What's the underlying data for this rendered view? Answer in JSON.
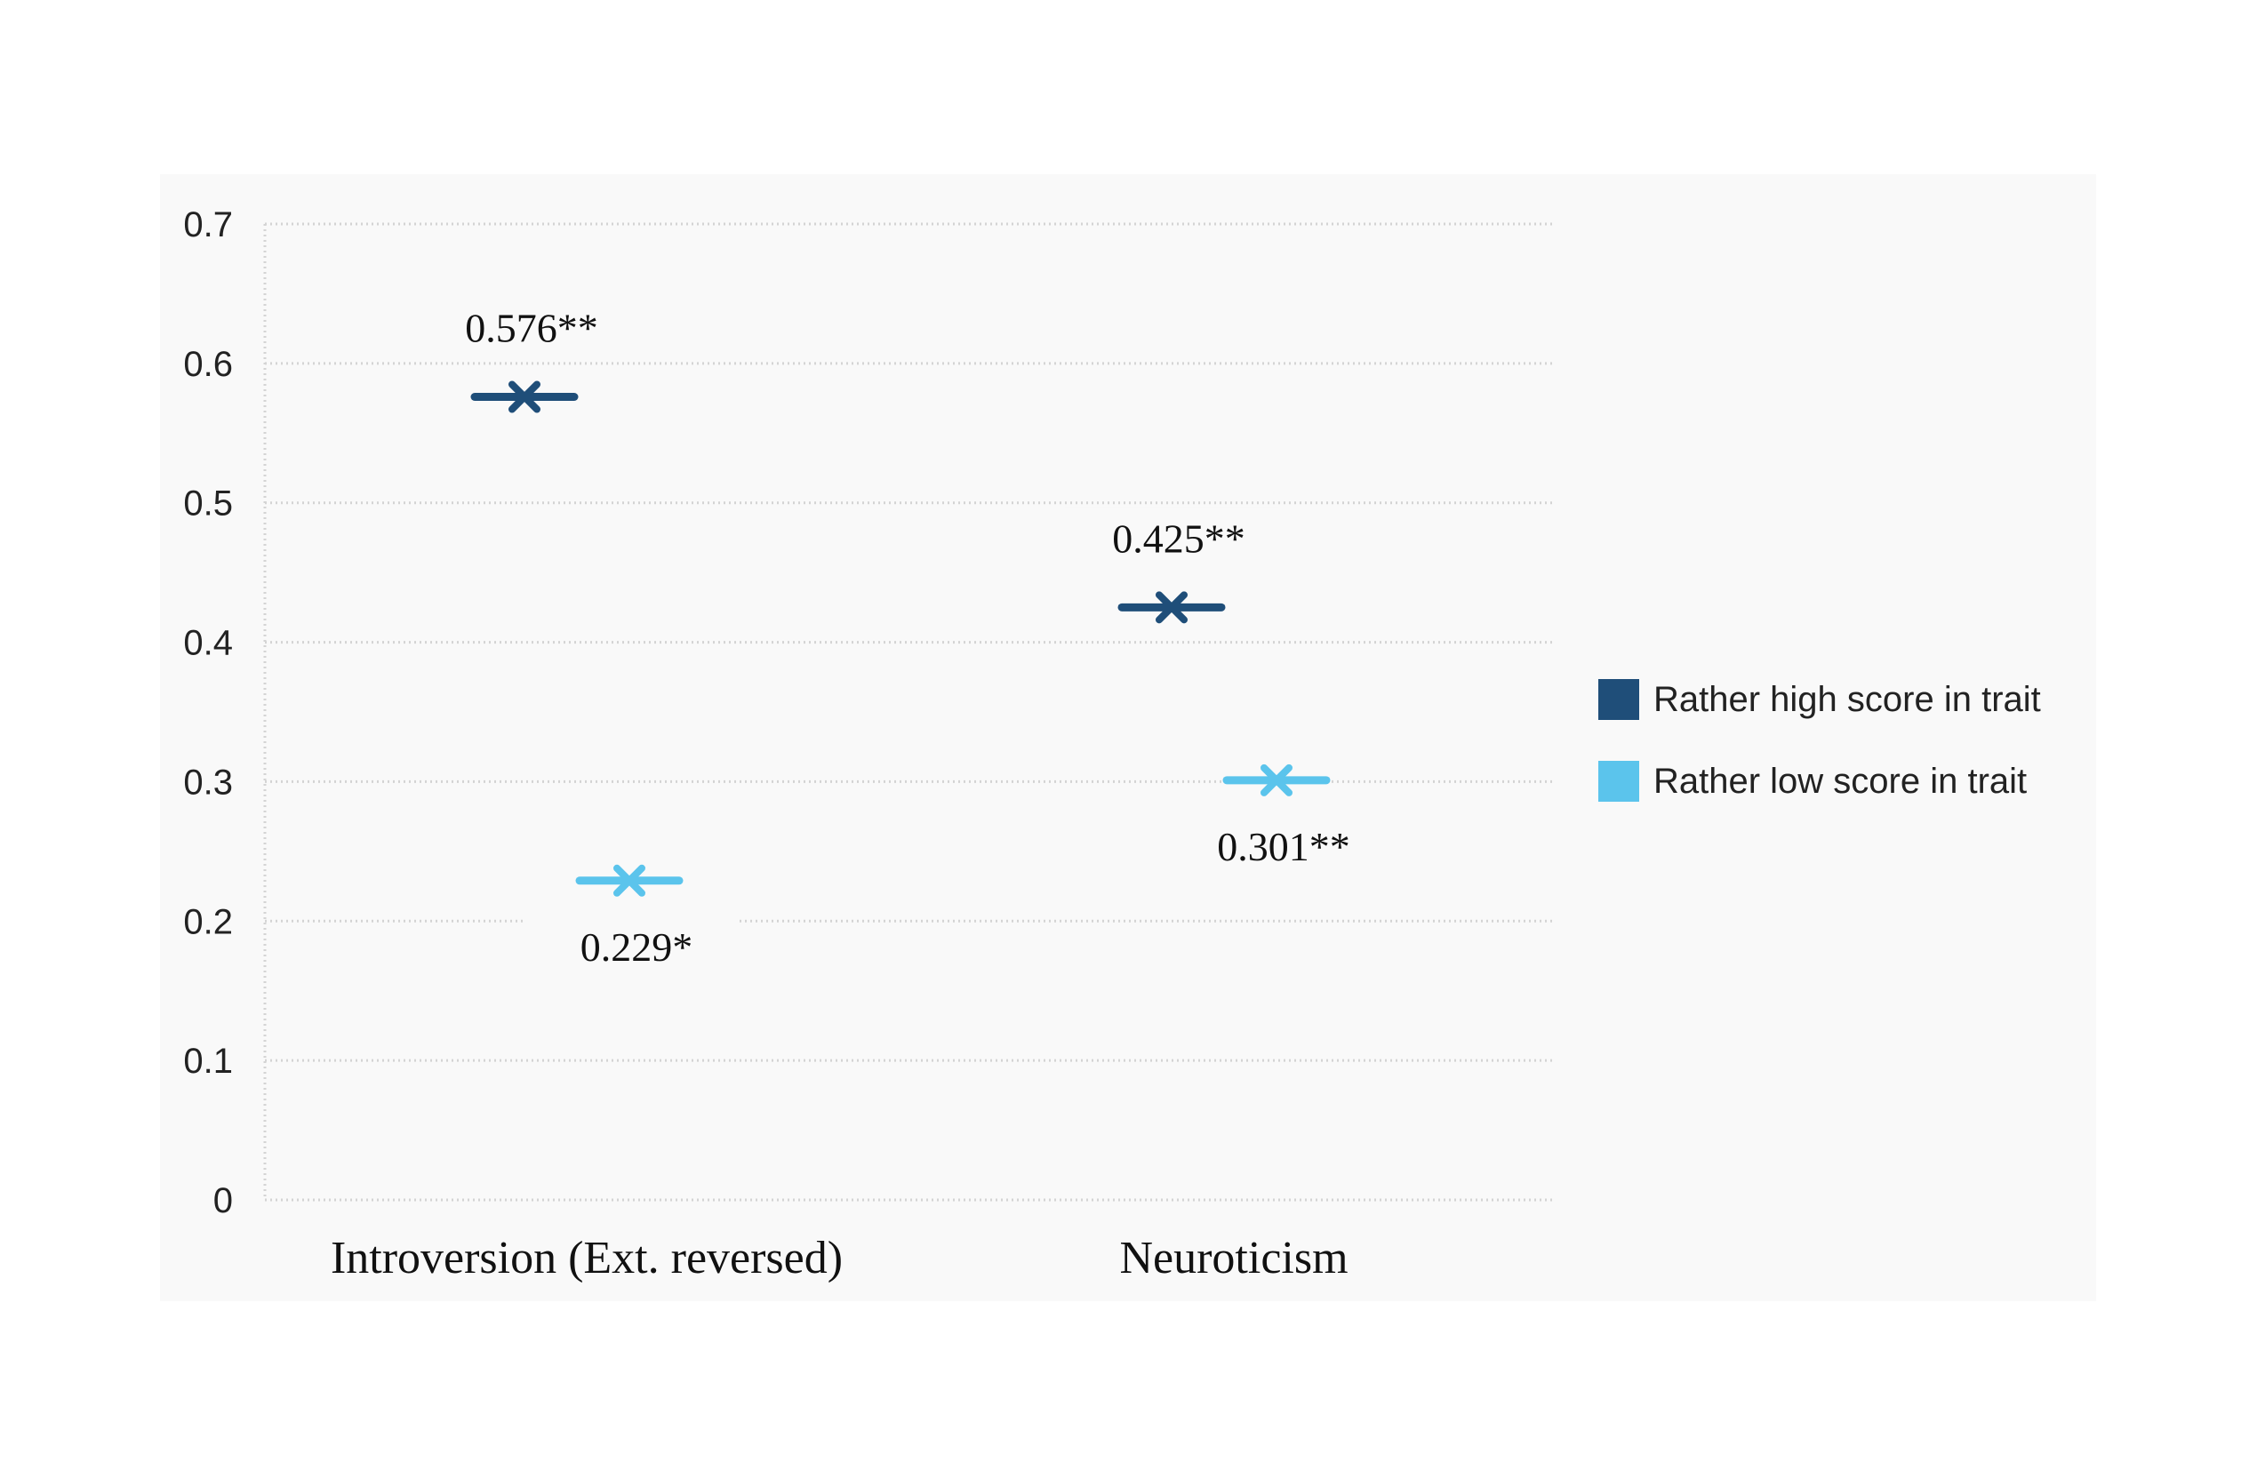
{
  "chart_data": {
    "type": "scatter",
    "categories": [
      "Introversion (Ext. reversed)",
      "Neuroticism"
    ],
    "series": [
      {
        "name": "Rather high score in trait",
        "color": "#1f4e79",
        "values": [
          0.576,
          0.425
        ],
        "labels": [
          "0.576**",
          "0.425**"
        ]
      },
      {
        "name": "Rather low score in trait",
        "color": "#5bc4ec",
        "values": [
          0.229,
          0.301
        ],
        "labels": [
          "0.229*",
          "0.301**"
        ]
      }
    ],
    "ylim": [
      0,
      0.7
    ],
    "yticks": [
      "0",
      "0.1",
      "0.2",
      "0.3",
      "0.4",
      "0.5",
      "0.6",
      "0.7"
    ],
    "grid": true,
    "legend": "right",
    "marker": "x-with-line"
  }
}
